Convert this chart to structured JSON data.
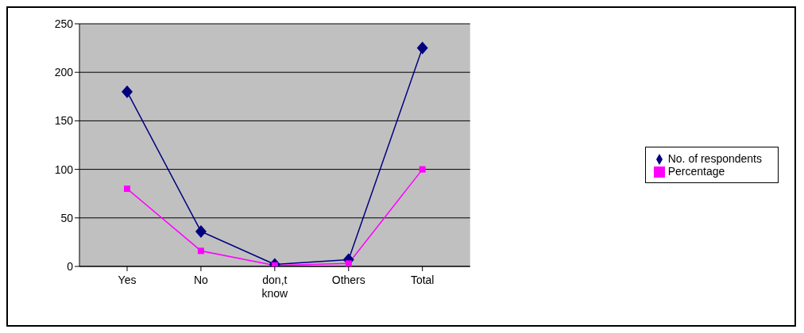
{
  "chart_data": {
    "type": "line",
    "categories": [
      "Yes",
      "No",
      "don,t know",
      "Others",
      "Total"
    ],
    "series": [
      {
        "name": "No. of respondents",
        "color": "#000080",
        "values": [
          180,
          36,
          2,
          7,
          225
        ],
        "marker": "diamond"
      },
      {
        "name": "Percentage",
        "color": "#ff00ff",
        "values": [
          80,
          16,
          1,
          3,
          100
        ],
        "marker": "square"
      }
    ],
    "ylim": [
      0,
      250
    ],
    "yticks": [
      0,
      50,
      100,
      150,
      200,
      250
    ],
    "grid": "y",
    "legend": "right",
    "line_style": "solid"
  }
}
